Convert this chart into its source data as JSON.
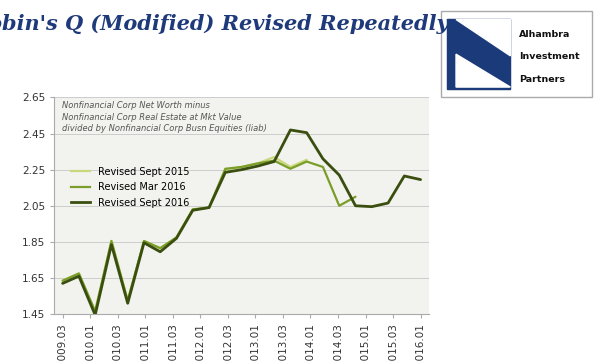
{
  "title": "Tobin's Q (Modified) Revised Repeatedly",
  "subtitle_line1": "Nonfinancial Corp Net Worth minus",
  "subtitle_line2": "Nonfinancial Corp Real Estate at Mkt Value",
  "subtitle_line3": "divided by Nonfinancial Corp Busn Equities (liab)",
  "x_labels": [
    "2009.03",
    "2010.01",
    "2010.03",
    "2011.01",
    "2011.03",
    "2012.01",
    "2012.03",
    "2013.01",
    "2013.03",
    "2014.01",
    "2014.03",
    "2015.01",
    "2015.03",
    "2016.01"
  ],
  "ylim": [
    1.45,
    2.65
  ],
  "yticks": [
    1.45,
    1.65,
    1.85,
    2.05,
    2.25,
    2.45,
    2.65
  ],
  "series": [
    {
      "label": "Revised Sept 2015",
      "color": "#c8d87a",
      "linewidth": 1.6,
      "values": [
        1.635,
        1.675,
        1.465,
        1.855,
        1.525,
        1.855,
        1.815,
        1.875,
        2.03,
        2.04,
        2.25,
        2.265,
        2.285,
        2.32,
        2.265,
        2.305,
        null,
        null,
        null,
        null,
        null,
        null,
        null
      ]
    },
    {
      "label": "Revised Mar 2016",
      "color": "#7a9e28",
      "linewidth": 1.6,
      "values": [
        1.635,
        1.675,
        1.465,
        1.855,
        1.525,
        1.855,
        1.815,
        1.875,
        2.03,
        2.04,
        2.255,
        2.265,
        2.285,
        2.3,
        2.255,
        2.295,
        2.265,
        2.05,
        2.1,
        null,
        null,
        null,
        null
      ]
    },
    {
      "label": "Revised Sept 2016",
      "color": "#3a4e10",
      "linewidth": 2.0,
      "values": [
        1.62,
        1.66,
        1.445,
        1.835,
        1.51,
        1.845,
        1.795,
        1.87,
        2.025,
        2.04,
        2.235,
        2.25,
        2.27,
        2.295,
        2.47,
        2.455,
        2.31,
        2.22,
        2.05,
        2.045,
        2.065,
        2.215,
        2.195
      ]
    }
  ],
  "background_color": "#f2f2ee",
  "grid_color": "#cccccc",
  "title_color": "#1f3a7a",
  "title_fontsize": 15,
  "axis_label_fontsize": 7.5,
  "tick_fontsize": 7.5
}
